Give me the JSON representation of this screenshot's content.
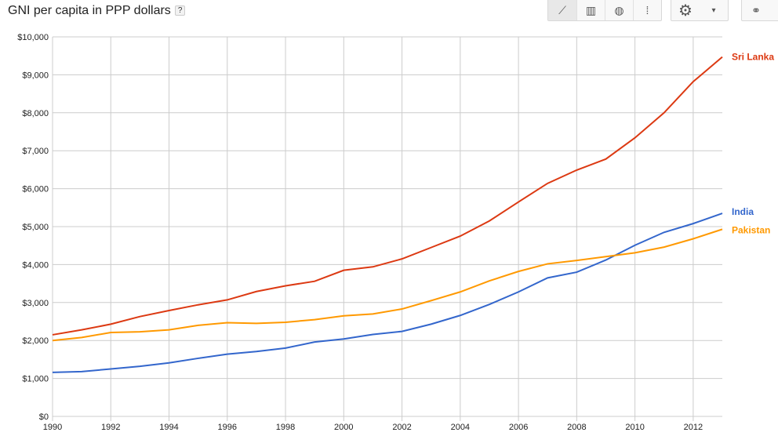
{
  "header": {
    "title": "GNI per capita in PPP dollars",
    "help_label": "?"
  },
  "toolbar": {
    "chart_types": [
      {
        "icon": "line-chart-icon",
        "glyph": "⟋",
        "active": true
      },
      {
        "icon": "bar-chart-icon",
        "glyph": "▥",
        "active": false
      },
      {
        "icon": "map-globe-icon",
        "glyph": "◍",
        "active": false
      },
      {
        "icon": "scatter-chart-icon",
        "glyph": "⁞",
        "active": false
      }
    ],
    "settings_glyph": "⚙",
    "dropdown_glyph": "▾",
    "link_glyph": "⚭"
  },
  "chart_data": {
    "type": "line",
    "title": "GNI per capita in PPP dollars",
    "x": [
      1990,
      1991,
      1992,
      1993,
      1994,
      1995,
      1996,
      1997,
      1998,
      1999,
      2000,
      2001,
      2002,
      2003,
      2004,
      2005,
      2006,
      2007,
      2008,
      2009,
      2010,
      2011,
      2012,
      2013
    ],
    "xlim": [
      1990,
      2013
    ],
    "ylim": [
      0,
      10000
    ],
    "x_ticks": [
      "1990",
      "1992",
      "1994",
      "1996",
      "1998",
      "2000",
      "2002",
      "2004",
      "2006",
      "2008",
      "2010",
      "2012"
    ],
    "y_ticks": [
      "$0",
      "$1,000",
      "$2,000",
      "$3,000",
      "$4,000",
      "$5,000",
      "$6,000",
      "$7,000",
      "$8,000",
      "$9,000",
      "$10,000"
    ],
    "grid": true,
    "legend": "right, line-end labels",
    "series": [
      {
        "name": "Sri Lanka",
        "color": "#dc3912",
        "values": [
          2150,
          2280,
          2430,
          2630,
          2790,
          2940,
          3070,
          3290,
          3440,
          3560,
          3850,
          3940,
          4150,
          4450,
          4750,
          5150,
          5650,
          6140,
          6490,
          6780,
          7340,
          8000,
          8820,
          9470
        ]
      },
      {
        "name": "India",
        "color": "#3366cc",
        "values": [
          1160,
          1180,
          1250,
          1320,
          1410,
          1530,
          1640,
          1710,
          1800,
          1960,
          2040,
          2160,
          2240,
          2430,
          2660,
          2950,
          3280,
          3650,
          3800,
          4120,
          4510,
          4850,
          5080,
          5350
        ]
      },
      {
        "name": "Pakistan",
        "color": "#ff9900",
        "values": [
          2000,
          2080,
          2210,
          2230,
          2280,
          2400,
          2470,
          2450,
          2480,
          2550,
          2650,
          2700,
          2830,
          3050,
          3280,
          3570,
          3820,
          4020,
          4110,
          4210,
          4310,
          4460,
          4680,
          4930
        ]
      }
    ]
  }
}
